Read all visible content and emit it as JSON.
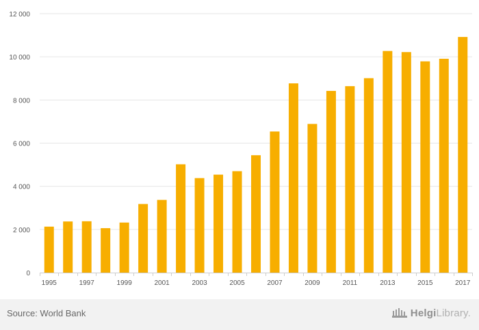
{
  "chart_data": {
    "type": "bar",
    "categories": [
      "1995",
      "1996",
      "1997",
      "1998",
      "1999",
      "2000",
      "2001",
      "2002",
      "2003",
      "2004",
      "2005",
      "2006",
      "2007",
      "2008",
      "2009",
      "2010",
      "2011",
      "2012",
      "2013",
      "2014",
      "2015",
      "2016",
      "2017"
    ],
    "values": [
      2130,
      2370,
      2380,
      2060,
      2320,
      3180,
      3370,
      5020,
      4380,
      4540,
      4700,
      5440,
      6540,
      8770,
      6890,
      8420,
      8640,
      9010,
      10270,
      10220,
      9790,
      9910,
      10920
    ],
    "ylim": [
      0,
      12000
    ],
    "yticks": [
      0,
      2000,
      4000,
      6000,
      8000,
      10000,
      12000
    ],
    "ytick_labels": [
      "0",
      "2 000",
      "4 000",
      "6 000",
      "8 000",
      "10 000",
      "12 000"
    ],
    "xtick_labels": [
      "1995",
      "1997",
      "1999",
      "2001",
      "2003",
      "2005",
      "2007",
      "2009",
      "2011",
      "2013",
      "2015",
      "2017"
    ],
    "bar_color": "#f7ae00",
    "grid": true,
    "grid_color": "#e6e6e6",
    "axis_color": "#cccccc"
  },
  "footer": {
    "source": "Source: World Bank",
    "logo_strong": "Helgi",
    "logo_light": "Library."
  }
}
